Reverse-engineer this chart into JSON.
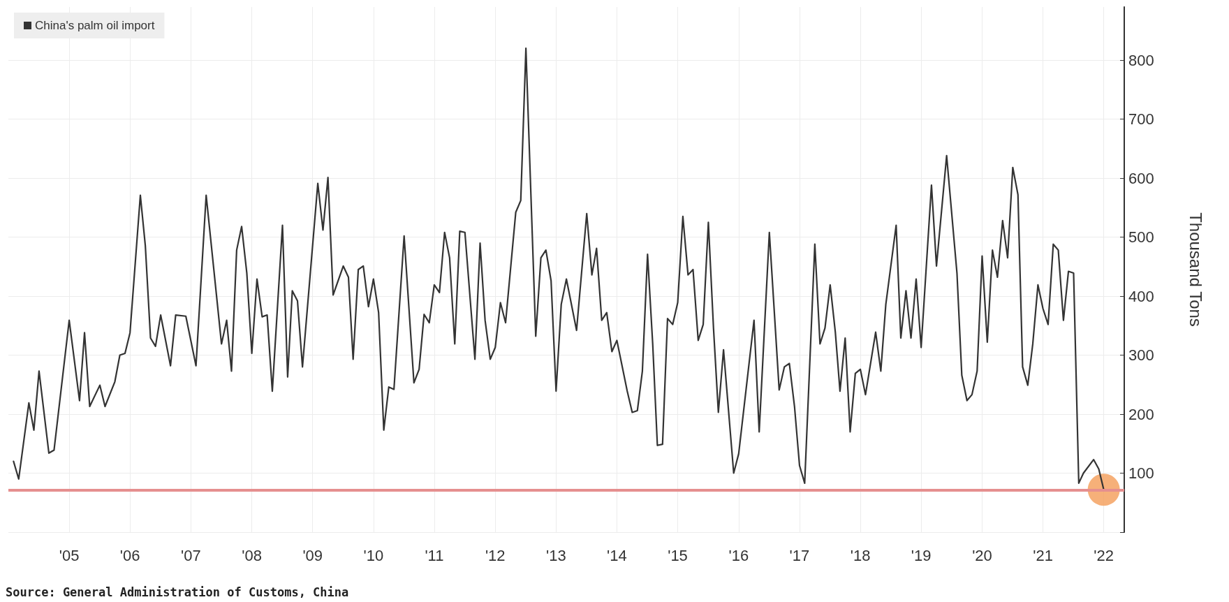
{
  "chart_data": {
    "type": "line",
    "ylabel": "Thousand Tons",
    "annotations": [
      "Source: General Administration of Customs, China"
    ],
    "x": [
      "2004-08",
      "2004-09",
      "2004-11",
      "2004-12",
      "2005-01",
      "2005-03",
      "2005-04",
      "2005-07",
      "2005-09",
      "2005-10",
      "2005-11",
      "2006-01",
      "2006-02",
      "2006-04",
      "2006-05",
      "2006-06",
      "2006-07",
      "2006-09",
      "2006-10",
      "2006-11",
      "2006-12",
      "2007-01",
      "2007-03",
      "2007-04",
      "2007-06",
      "2007-08",
      "2007-10",
      "2008-01",
      "2008-02",
      "2008-03",
      "2008-04",
      "2008-05",
      "2008-06",
      "2008-07",
      "2008-08",
      "2008-09",
      "2008-10",
      "2008-11",
      "2009-01",
      "2009-02",
      "2009-03",
      "2009-04",
      "2009-05",
      "2009-08",
      "2009-09",
      "2009-10",
      "2009-11",
      "2010-01",
      "2010-02",
      "2010-03",
      "2010-04",
      "2010-05",
      "2010-06",
      "2010-07",
      "2010-08",
      "2010-09",
      "2010-10",
      "2010-11",
      "2011-01",
      "2011-03",
      "2011-04",
      "2011-05",
      "2011-06",
      "2011-07",
      "2011-08",
      "2011-09",
      "2011-10",
      "2011-11",
      "2011-12",
      "2012-01",
      "2012-03",
      "2012-04",
      "2012-05",
      "2012-06",
      "2012-07",
      "2012-08",
      "2012-09",
      "2012-11",
      "2012-12",
      "2013-01",
      "2013-03",
      "2013-04",
      "2013-05",
      "2013-06",
      "2013-07",
      "2013-08",
      "2013-09",
      "2013-11",
      "2014-01",
      "2014-02",
      "2014-03",
      "2014-04",
      "2014-05",
      "2014-06",
      "2014-07",
      "2014-09",
      "2014-10",
      "2014-11",
      "2014-12",
      "2015-01",
      "2015-02",
      "2015-03",
      "2015-04",
      "2015-05",
      "2015-06",
      "2015-07",
      "2015-08",
      "2015-09",
      "2015-10",
      "2015-11",
      "2015-12",
      "2016-01",
      "2016-02",
      "2016-03",
      "2016-04",
      "2016-06",
      "2016-07",
      "2016-10",
      "2016-11",
      "2017-01",
      "2017-03",
      "2017-04",
      "2017-05",
      "2017-06",
      "2017-07",
      "2017-08",
      "2017-10",
      "2017-11",
      "2017-12",
      "2018-01",
      "2018-02",
      "2018-03",
      "2018-04",
      "2018-05",
      "2018-06",
      "2018-07",
      "2018-08",
      "2018-10",
      "2018-11",
      "2018-12",
      "2019-02",
      "2019-03",
      "2019-04",
      "2019-05",
      "2019-06",
      "2019-07",
      "2019-09",
      "2019-10",
      "2019-12",
      "2020-02",
      "2020-03",
      "2020-04",
      "2020-05",
      "2020-06",
      "2020-07",
      "2020-08",
      "2020-09",
      "2020-10",
      "2020-11",
      "2020-12",
      "2021-01",
      "2021-02",
      "2021-03",
      "2021-04",
      "2021-05",
      "2021-06",
      "2021-07",
      "2021-08",
      "2021-09",
      "2021-10",
      "2021-11",
      "2021-12",
      "2022-01",
      "2022-02",
      "2022-03",
      "2022-05",
      "2022-06",
      "2022-07"
    ],
    "series": [
      {
        "name": "China's palm oil import",
        "color": "#333333",
        "values": [
          120,
          90,
          219,
          173,
          273,
          134,
          139,
          359,
          223,
          338,
          213,
          249,
          213,
          255,
          300,
          303,
          338,
          571,
          485,
          329,
          315,
          368,
          282,
          368,
          366,
          282,
          571,
          319,
          359,
          273,
          478,
          518,
          439,
          303,
          429,
          365,
          368,
          239,
          520,
          263,
          409,
          392,
          280,
          591,
          512,
          601,
          402,
          451,
          432,
          293,
          445,
          451,
          382,
          429,
          372,
          173,
          246,
          242,
          502,
          253,
          276,
          369,
          355,
          419,
          406,
          508,
          465,
          319,
          510,
          508,
          293,
          490,
          359,
          293,
          313,
          389,
          355,
          542,
          562,
          820,
          332,
          465,
          478,
          426,
          239,
          386,
          429,
          342,
          540,
          436,
          481,
          359,
          372,
          306,
          325,
          239,
          203,
          206,
          273,
          471,
          319,
          147,
          149,
          362,
          352,
          389,
          535,
          436,
          445,
          325,
          352,
          525,
          345,
          203,
          309,
          100,
          133,
          359,
          170,
          508,
          241,
          280,
          286,
          213,
          113,
          83,
          488,
          319,
          346,
          419,
          339,
          239,
          329,
          170,
          269,
          276,
          233,
          339,
          273,
          386,
          520,
          329,
          409,
          329,
          429,
          313,
          588,
          451,
          638,
          439,
          266,
          223,
          233,
          273,
          468,
          322,
          478,
          432,
          528,
          465,
          618,
          572,
          280,
          249,
          319,
          419,
          379,
          352,
          488,
          478,
          359,
          442,
          439,
          83,
          100,
          123,
          107,
          72
        ]
      },
      {
        "type": "scatter",
        "marker": "circle",
        "color": "#f4a261",
        "x": [
          "2022-07"
        ],
        "values": [
          72
        ]
      }
    ],
    "ylim": [
      0,
      890
    ],
    "yticks": [
      {
        "value": 0,
        "label": null
      },
      100,
      200,
      300,
      400,
      500,
      600,
      700,
      800
    ],
    "xlim": [
      "2004-07",
      "2022-11"
    ],
    "xticks": [
      {
        "value": "2005-07",
        "label": "'05"
      },
      {
        "value": "2006-07",
        "label": "'06"
      },
      {
        "value": "2007-07",
        "label": "'07"
      },
      {
        "value": "2008-07",
        "label": "'08"
      },
      {
        "value": "2009-07",
        "label": "'09"
      },
      {
        "value": "2010-07",
        "label": "'10"
      },
      {
        "value": "2011-07",
        "label": "'11"
      },
      {
        "value": "2012-07",
        "label": "'12"
      },
      {
        "value": "2013-07",
        "label": "'13"
      },
      {
        "value": "2014-07",
        "label": "'14"
      },
      {
        "value": "2015-07",
        "label": "'15"
      },
      {
        "value": "2016-07",
        "label": "'16"
      },
      {
        "value": "2017-07",
        "label": "'17"
      },
      {
        "value": "2018-07",
        "label": "'18"
      },
      {
        "value": "2019-07",
        "label": "'19"
      },
      {
        "value": "2020-07",
        "label": "'20"
      },
      {
        "value": "2021-07",
        "label": "'21"
      },
      {
        "value": "2022-07",
        "label": "'22"
      }
    ],
    "ref_lines": [
      {
        "axis": "y",
        "value": 71,
        "color": "#e58f8f"
      }
    ],
    "grid": true,
    "legend": "top left",
    "marker": "none",
    "line_style": "solid"
  }
}
